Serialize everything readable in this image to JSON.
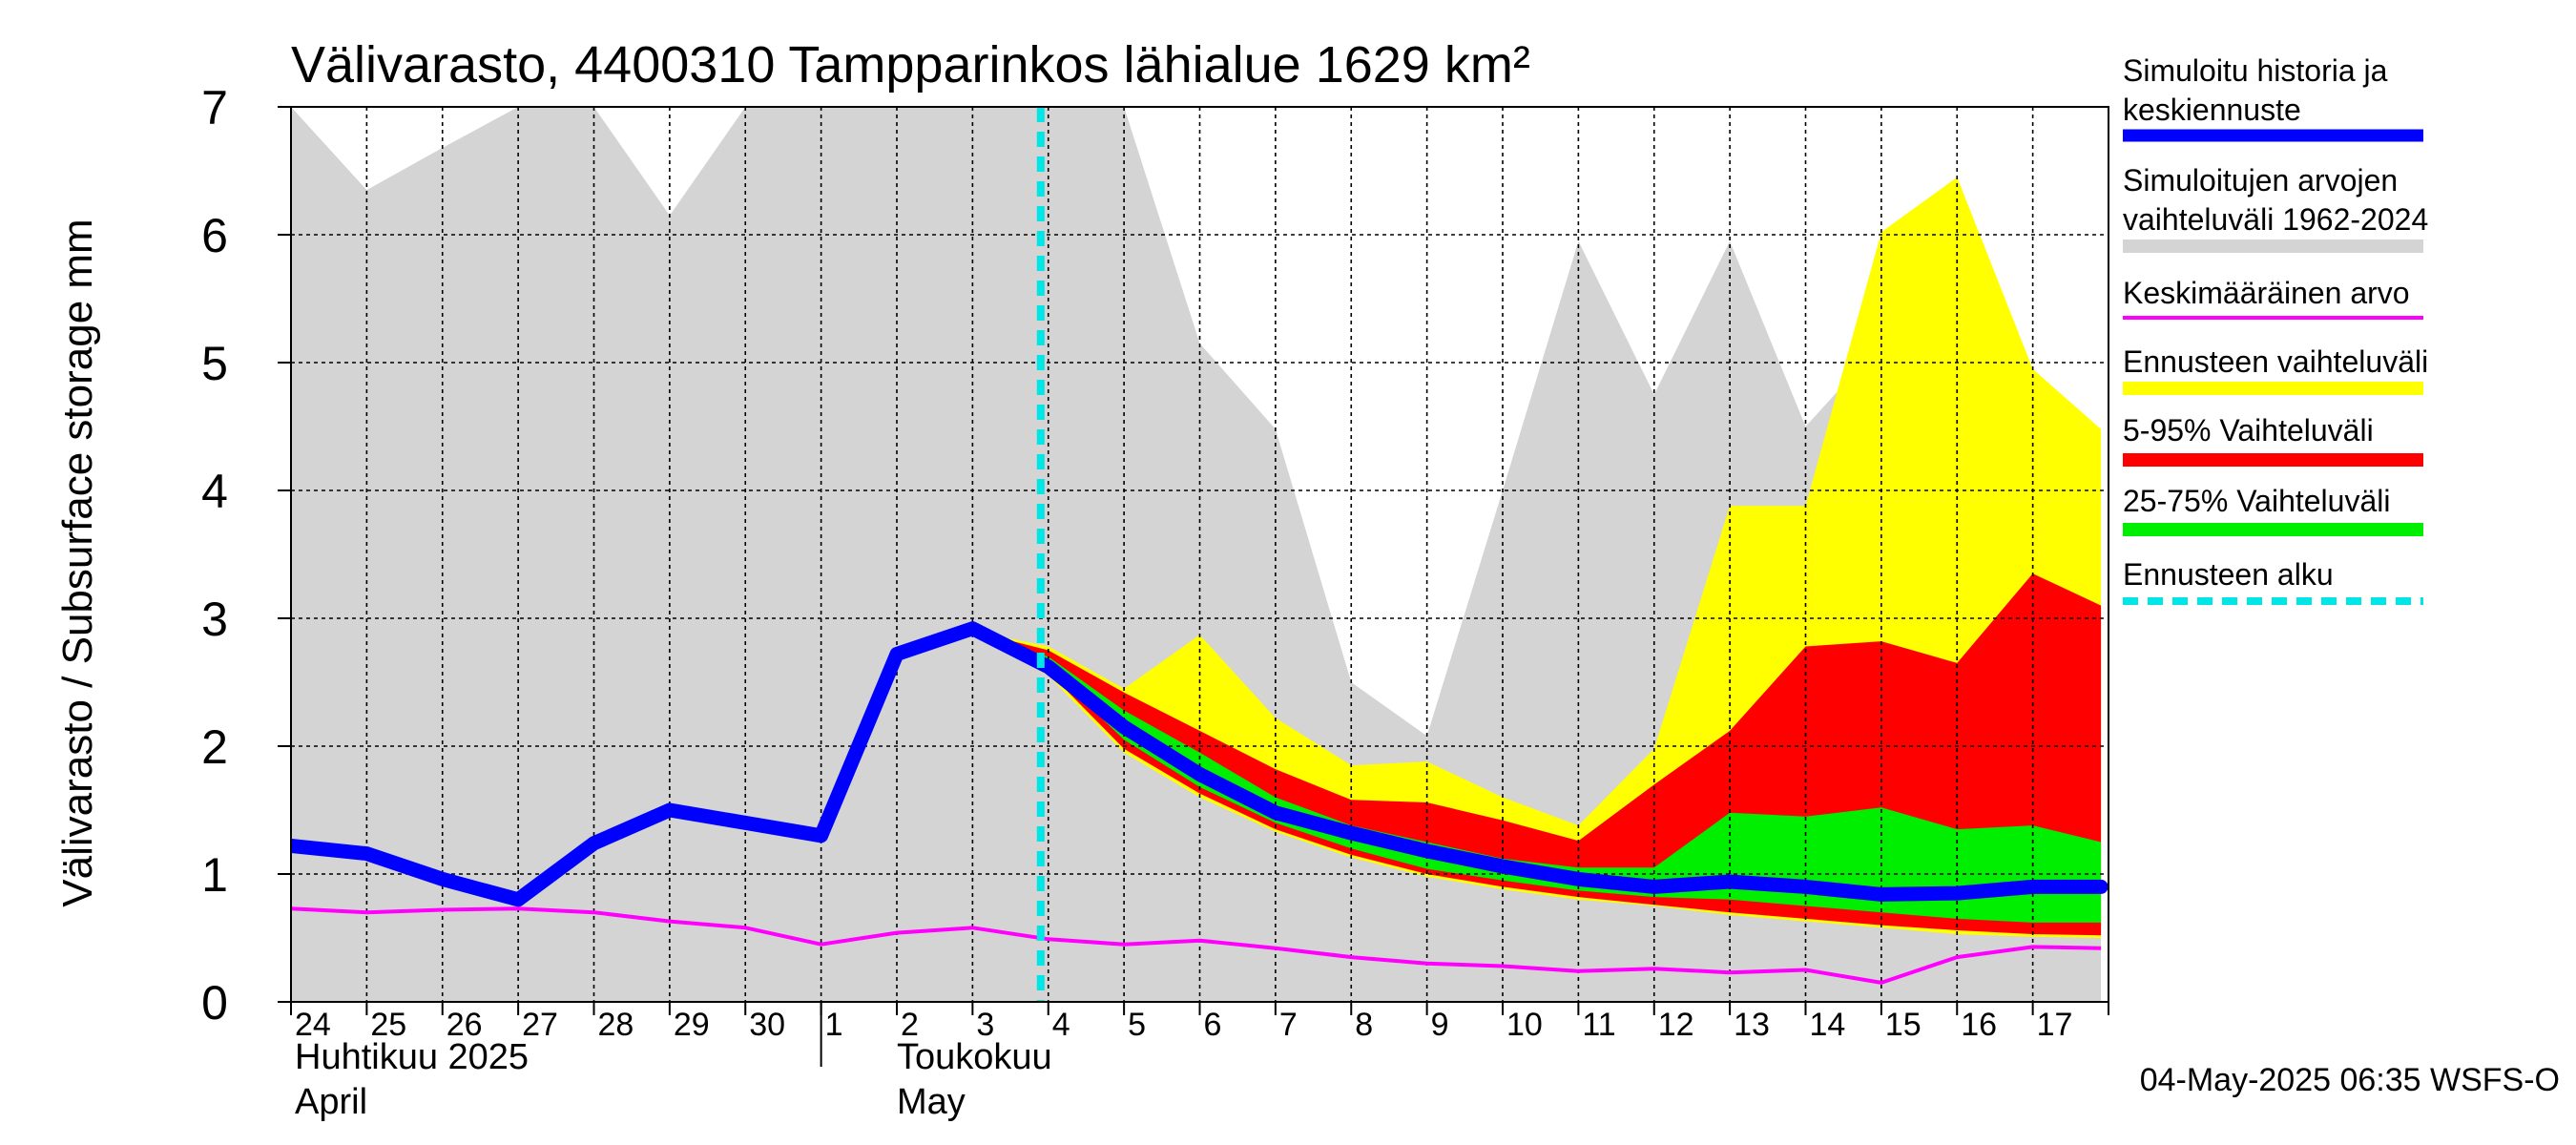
{
  "chart_data": {
    "type": "area",
    "title": "Välivarasto, 4400310 Tampparinkos lähialue 1629 km²",
    "ylabel": "Välivarasto / Subsurface storage  mm",
    "ylim": [
      0,
      7
    ],
    "yticks": [
      0,
      1,
      2,
      3,
      4,
      5,
      6,
      7
    ],
    "grid": true,
    "legend_position": "right",
    "x_tick_labels": [
      "24",
      "25",
      "26",
      "27",
      "28",
      "29",
      "30",
      "1",
      "2",
      "3",
      "4",
      "5",
      "6",
      "7",
      "8",
      "9",
      "10",
      "11",
      "12",
      "13",
      "14",
      "15",
      "16",
      "17"
    ],
    "month_labels": [
      {
        "fi": "Huhtikuu  2025",
        "en": "April"
      },
      {
        "fi": "Toukokuu",
        "en": "May"
      }
    ],
    "x": [
      0,
      1,
      2,
      3,
      4,
      5,
      6,
      7,
      8,
      9,
      10,
      11,
      12,
      13,
      14,
      15,
      16,
      17,
      18,
      19,
      20,
      21,
      22,
      23,
      23.9
    ],
    "forecast_start": 9.9,
    "history_range": {
      "lower": [
        0,
        0,
        0,
        0,
        0,
        0,
        0,
        0,
        0,
        0,
        0,
        0,
        0,
        0,
        0,
        0,
        0,
        0,
        0,
        0,
        0,
        0,
        0,
        0,
        0
      ],
      "upper": [
        7.0,
        6.35,
        6.68,
        7.0,
        7.0,
        6.15,
        7.0,
        7.0,
        7.0,
        7.0,
        7.0,
        7.0,
        5.15,
        4.48,
        2.5,
        2.08,
        4.0,
        5.95,
        4.75,
        5.95,
        4.5,
        5.15,
        4.05,
        4.95,
        4.05
      ]
    },
    "forecast_range": {
      "x": [
        9,
        10,
        11,
        12,
        13,
        14,
        15,
        16,
        17,
        18,
        19,
        20,
        21,
        22,
        23,
        23.9
      ],
      "lower": [
        2.9,
        2.55,
        1.95,
        1.6,
        1.33,
        1.13,
        0.98,
        0.88,
        0.8,
        0.75,
        0.68,
        0.63,
        0.58,
        0.53,
        0.51,
        0.5
      ],
      "upper": [
        2.9,
        2.78,
        2.45,
        2.87,
        2.22,
        1.85,
        1.88,
        1.6,
        1.38,
        1.98,
        3.88,
        3.88,
        6.02,
        6.45,
        4.95,
        4.48
      ]
    },
    "range_5_95": {
      "x": [
        9,
        10,
        11,
        12,
        13,
        14,
        15,
        16,
        17,
        18,
        19,
        20,
        21,
        22,
        23,
        23.9
      ],
      "lower": [
        2.9,
        2.58,
        1.98,
        1.63,
        1.35,
        1.15,
        1.0,
        0.9,
        0.82,
        0.76,
        0.7,
        0.65,
        0.6,
        0.56,
        0.53,
        0.52
      ],
      "upper": [
        2.9,
        2.75,
        2.42,
        2.12,
        1.82,
        1.58,
        1.56,
        1.42,
        1.26,
        1.7,
        2.12,
        2.78,
        2.82,
        2.65,
        3.35,
        3.1
      ]
    },
    "range_25_75": {
      "x": [
        9,
        10,
        11,
        12,
        13,
        14,
        15,
        16,
        17,
        18,
        19,
        20,
        21,
        22,
        23,
        23.9
      ],
      "lower": [
        2.9,
        2.62,
        2.05,
        1.68,
        1.4,
        1.2,
        1.04,
        0.95,
        0.87,
        0.82,
        0.8,
        0.75,
        0.7,
        0.65,
        0.62,
        0.62
      ],
      "upper": [
        2.9,
        2.7,
        2.28,
        1.95,
        1.6,
        1.38,
        1.25,
        1.12,
        1.05,
        1.05,
        1.48,
        1.45,
        1.52,
        1.35,
        1.38,
        1.25
      ]
    },
    "series": [
      {
        "name": "Simuloitu historia ja keskiennuste",
        "color": "#0000ff",
        "values": [
          1.22,
          1.16,
          0.96,
          0.8,
          1.24,
          1.5,
          1.4,
          1.3,
          2.72,
          2.92,
          2.62,
          2.15,
          1.78,
          1.48,
          1.32,
          1.18,
          1.06,
          0.96,
          0.9,
          0.94,
          0.9,
          0.84,
          0.85,
          0.9,
          0.9
        ]
      },
      {
        "name": "Keskimääräinen arvo",
        "color": "#ff00ff",
        "values": [
          0.73,
          0.7,
          0.72,
          0.73,
          0.7,
          0.63,
          0.58,
          0.45,
          0.54,
          0.58,
          0.49,
          0.45,
          0.48,
          0.42,
          0.35,
          0.3,
          0.28,
          0.24,
          0.26,
          0.23,
          0.25,
          0.15,
          0.35,
          0.43,
          0.42
        ]
      }
    ],
    "legend": [
      {
        "label": "Simuloitu historia ja keskiennuste",
        "color": "#0000ff",
        "style": "line"
      },
      {
        "label": "Simuloitujen arvojen vaihteluväli 1962-2024",
        "color": "#d4d4d4",
        "style": "band"
      },
      {
        "label": "Keskimääräinen arvo",
        "color": "#ff00ff",
        "style": "thin"
      },
      {
        "label": "Ennusteen vaihteluväli",
        "color": "#ffff00",
        "style": "band"
      },
      {
        "label": "5-95% Vaihteluväli",
        "color": "#ff0000",
        "style": "band"
      },
      {
        "label": "25-75% Vaihteluväli",
        "color": "#00ee00",
        "style": "band"
      },
      {
        "label": "Ennusteen alku",
        "color": "#00e5e5",
        "style": "dashed"
      }
    ],
    "timestamp": "04-May-2025 06:35 WSFS-O"
  }
}
